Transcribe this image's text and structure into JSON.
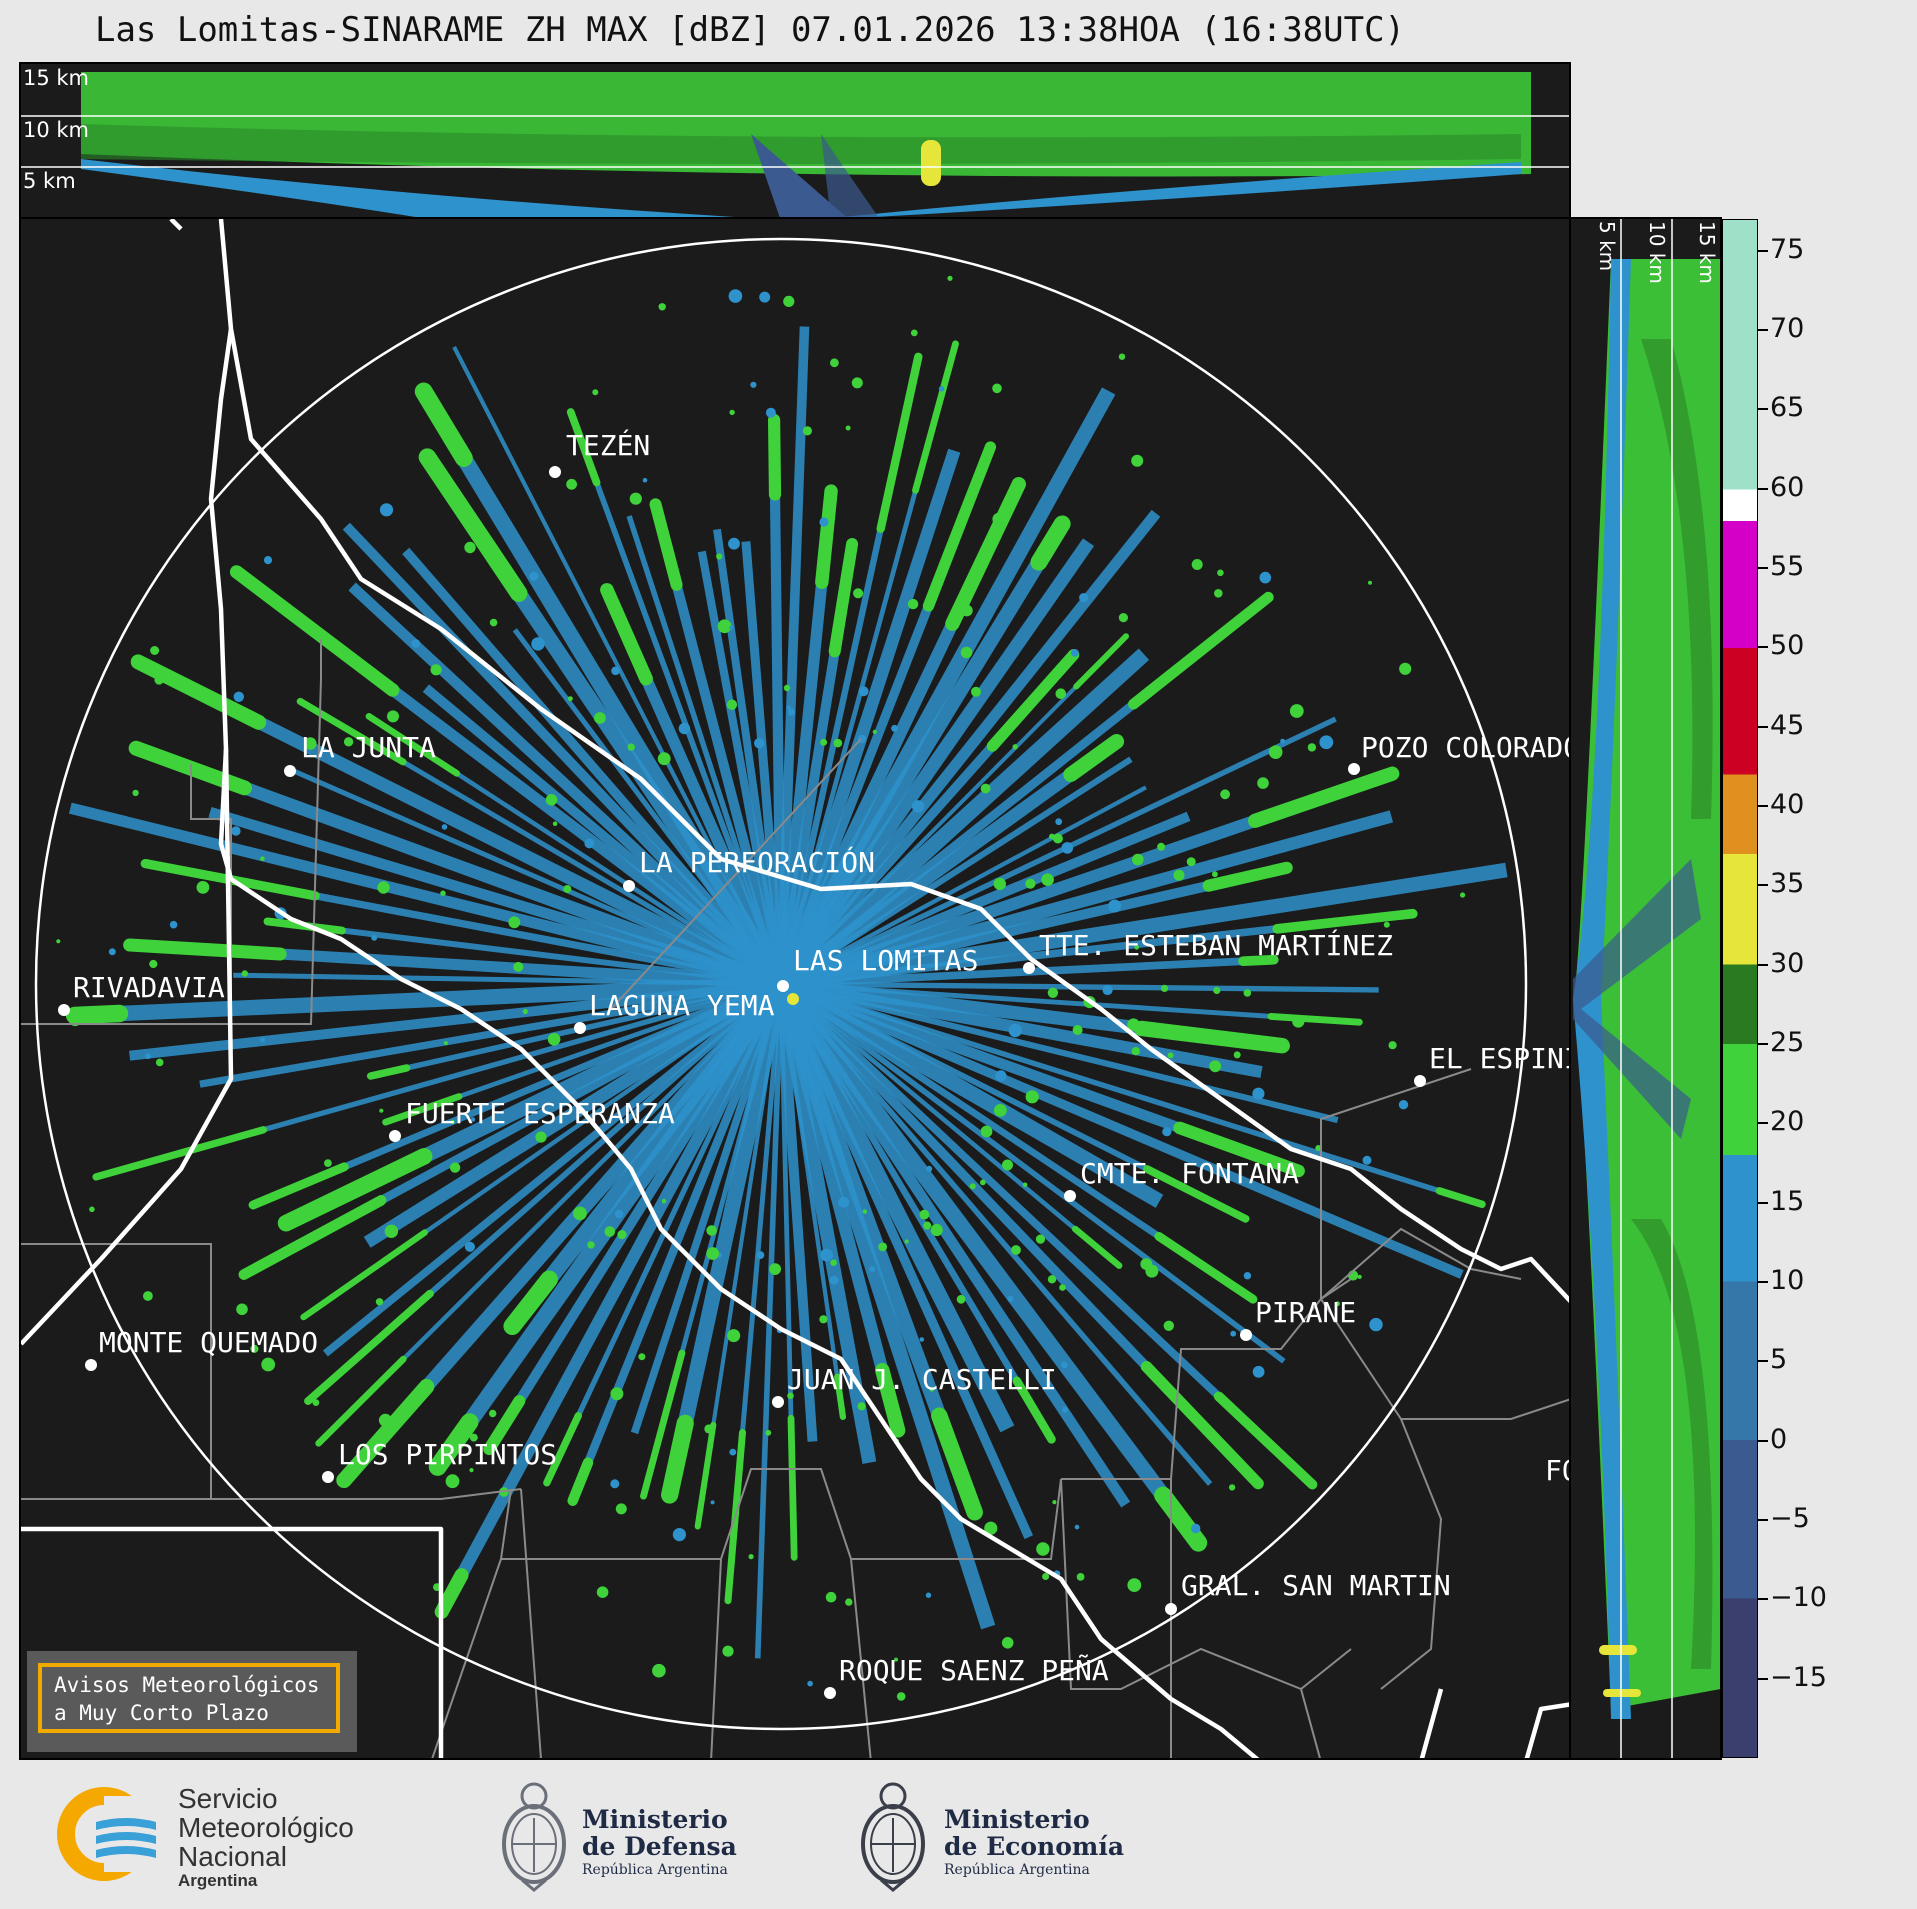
{
  "title": "Las Lomitas-SINARAME ZH MAX [dBZ] 07.01.2026 13:38HOA (16:38UTC)",
  "top_panel": {
    "altitudes": [
      "15 km",
      "10 km",
      "5 km"
    ]
  },
  "side_panel": {
    "altitudes": [
      "5 km",
      "10 km",
      "15 km"
    ]
  },
  "colorbar": {
    "unit": "dBZ",
    "ticks": [
      "75",
      "70",
      "65",
      "60",
      "55",
      "50",
      "45",
      "40",
      "35",
      "30",
      "25",
      "20",
      "15",
      "10",
      "5",
      "0",
      "−5",
      "−10",
      "−15"
    ],
    "scale": [
      {
        "from": -20,
        "to": -10,
        "color": "#3a3f6e"
      },
      {
        "from": -10,
        "to": 0,
        "color": "#3b5a8f"
      },
      {
        "from": 0,
        "to": 10,
        "color": "#3577a8"
      },
      {
        "from": 10,
        "to": 18,
        "color": "#2e92cc"
      },
      {
        "from": 18,
        "to": 25,
        "color": "#3fd23a"
      },
      {
        "from": 25,
        "to": 30,
        "color": "#2a7a22"
      },
      {
        "from": 30,
        "to": 37,
        "color": "#e6e63a"
      },
      {
        "from": 37,
        "to": 42,
        "color": "#e0901f"
      },
      {
        "from": 42,
        "to": 50,
        "color": "#cc0022"
      },
      {
        "from": 50,
        "to": 58,
        "color": "#d400c8"
      },
      {
        "from": 58,
        "to": 60,
        "color": "#ffffff"
      },
      {
        "from": 60,
        "to": 77,
        "color": "#9fe0c8"
      }
    ]
  },
  "cities": [
    {
      "name": "TEZÉN"
    },
    {
      "name": "LA JUNTA"
    },
    {
      "name": "POZO COLORADO"
    },
    {
      "name": "LA PERFORACIÓN"
    },
    {
      "name": "TTE. ESTEBAN MARTÍNEZ"
    },
    {
      "name": "RIVADAVIA"
    },
    {
      "name": "LAGUNA YEMA"
    },
    {
      "name": "LAS LOMITAS"
    },
    {
      "name": "EL ESPINILLO"
    },
    {
      "name": "FUERTE ESPERANZA"
    },
    {
      "name": "CMTE. FONTANA"
    },
    {
      "name": "PIRANE"
    },
    {
      "name": "MONTE QUEMADO"
    },
    {
      "name": "JUAN J. CASTELLI"
    },
    {
      "name": "LOS PIRPINTOS"
    },
    {
      "name": "GRAL. SAN MARTIN"
    },
    {
      "name": "ROQUE SAENZ PEÑA"
    },
    {
      "name": "FO"
    }
  ],
  "notice": {
    "text": "Avisos Meteorológicos\na Muy Corto Plazo"
  },
  "logos": {
    "smn": [
      "Servicio",
      "Meteorológico",
      "Nacional",
      "Argentina"
    ],
    "defensa": [
      "Ministerio",
      "de Defensa",
      "República Argentina"
    ],
    "economia": [
      "Ministerio",
      "de Economía",
      "República Argentina"
    ]
  }
}
